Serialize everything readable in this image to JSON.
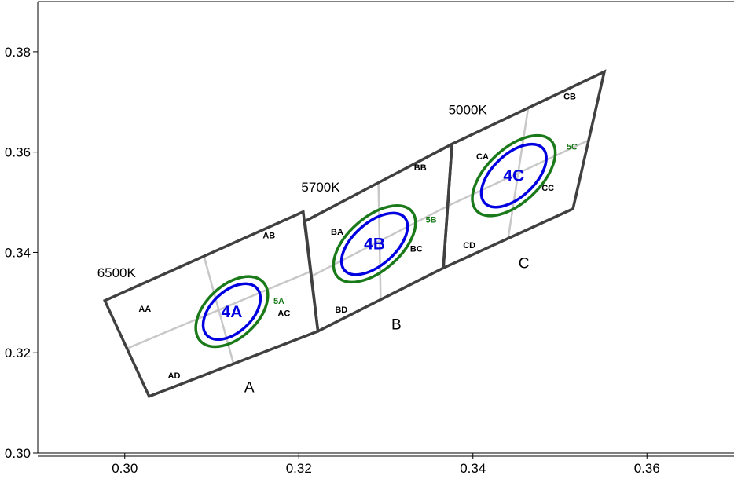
{
  "chart_data": {
    "type": "scatter",
    "xlim": [
      0.29,
      0.37
    ],
    "ylim": [
      0.3,
      0.39
    ],
    "x_ticks": [
      "0.30",
      "0.32",
      "0.34",
      "0.36"
    ],
    "y_ticks": [
      "0.30",
      "0.32",
      "0.34",
      "0.36",
      "0.38"
    ],
    "x_tick_values": [
      0.3,
      0.32,
      0.34,
      0.36
    ],
    "y_tick_values": [
      0.3,
      0.32,
      0.34,
      0.36,
      0.38
    ],
    "grid": false,
    "colors": {
      "quad": "#404040",
      "divider": "#c8c8c8",
      "blue": "#0000e0",
      "green": "#1a7a1a"
    },
    "bins": [
      {
        "group": "A",
        "cct": "6500K",
        "corners": [
          [
            0.2977,
            0.3304
          ],
          [
            0.3205,
            0.3481
          ],
          [
            0.3222,
            0.3243
          ],
          [
            0.3028,
            0.3113
          ]
        ],
        "sub_bins": [
          "AA",
          "AB",
          "AC",
          "AD"
        ],
        "ellipse_blue": {
          "label": "4A",
          "center": [
            0.3123,
            0.3282
          ],
          "a": 0.0055,
          "b": 0.0026,
          "angle_deg": 58.6
        },
        "ellipse_green": {
          "label": "5A",
          "center": [
            0.3123,
            0.3282
          ],
          "a": 0.0069,
          "b": 0.0033,
          "angle_deg": 58.6
        }
      },
      {
        "group": "B",
        "cct": "5700K",
        "corners": [
          [
            0.3207,
            0.3462
          ],
          [
            0.3376,
            0.3616
          ],
          [
            0.3366,
            0.3369
          ],
          [
            0.3222,
            0.3243
          ]
        ],
        "sub_bins": [
          "BA",
          "BB",
          "BC",
          "BD"
        ],
        "ellipse_blue": {
          "label": "4B",
          "center": [
            0.3287,
            0.3417
          ],
          "a": 0.0063,
          "b": 0.0027,
          "angle_deg": 56.9
        },
        "ellipse_green": {
          "label": "5B",
          "center": [
            0.3287,
            0.3417
          ],
          "a": 0.0078,
          "b": 0.0034,
          "angle_deg": 56.9
        }
      },
      {
        "group": "C",
        "cct": "5000K",
        "corners": [
          [
            0.3376,
            0.3616
          ],
          [
            0.3551,
            0.376
          ],
          [
            0.3515,
            0.3487
          ],
          [
            0.3366,
            0.3369
          ]
        ],
        "sub_bins": [
          "CA",
          "CB",
          "CC",
          "CD"
        ],
        "ellipse_blue": {
          "label": "4C",
          "center": [
            0.3447,
            0.3553
          ],
          "a": 0.0064,
          "b": 0.0027,
          "angle_deg": 58.6
        },
        "ellipse_green": {
          "label": "5C",
          "center": [
            0.3447,
            0.3553
          ],
          "a": 0.0082,
          "b": 0.0034,
          "angle_deg": 58.6
        }
      }
    ]
  }
}
